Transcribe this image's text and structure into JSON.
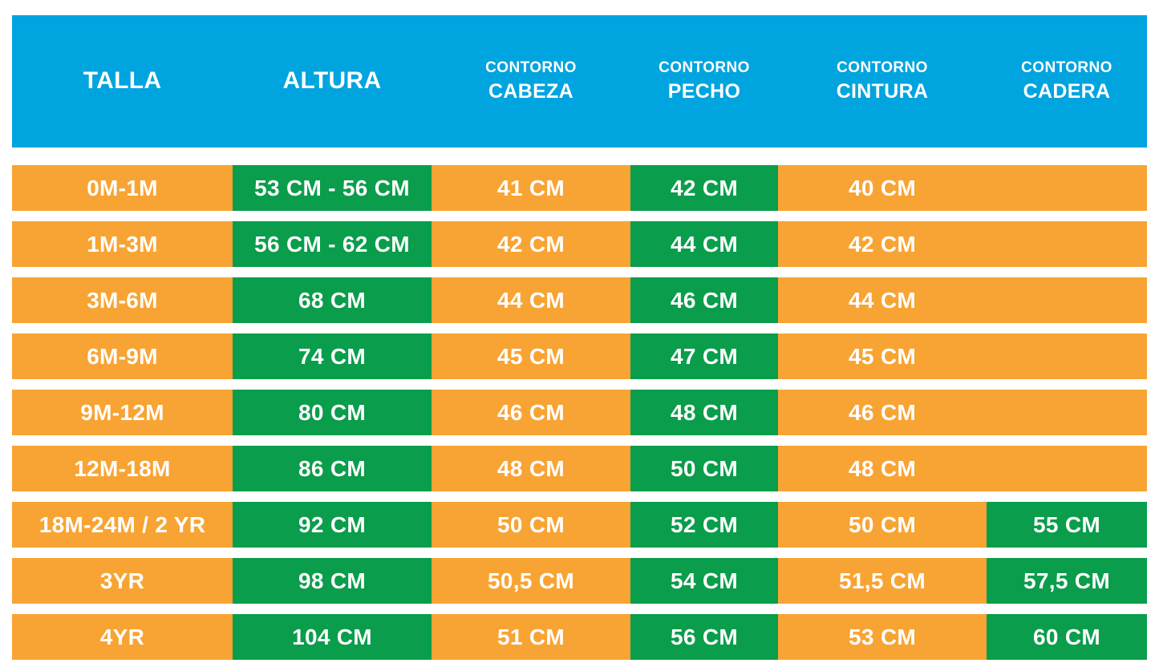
{
  "colors": {
    "header_bg": "#00A4DF",
    "row_bg": "#F8A434",
    "highlight_bg": "#0A9D4B",
    "text": "#FFFFFF"
  },
  "chart_data": {
    "type": "table",
    "columns": [
      {
        "id": "talla",
        "sublabel": "",
        "label": "TALLA"
      },
      {
        "id": "altura",
        "sublabel": "",
        "label": "ALTURA"
      },
      {
        "id": "cabeza",
        "sublabel": "CONTORNO",
        "label": "CABEZA"
      },
      {
        "id": "pecho",
        "sublabel": "CONTORNO",
        "label": "PECHO"
      },
      {
        "id": "cintura",
        "sublabel": "CONTORNO",
        "label": "CINTURA"
      },
      {
        "id": "cadera",
        "sublabel": "CONTORNO",
        "label": "CADERA"
      }
    ],
    "rows": [
      {
        "cells": [
          {
            "text": "0M-1M",
            "green": false
          },
          {
            "text": "53 CM - 56 CM",
            "green": true
          },
          {
            "text": "41 CM",
            "green": false
          },
          {
            "text": "42 CM",
            "green": true
          },
          {
            "text": "40 CM",
            "green": false
          },
          {
            "text": "",
            "green": false
          }
        ]
      },
      {
        "cells": [
          {
            "text": "1M-3M",
            "green": false
          },
          {
            "text": "56 CM - 62 CM",
            "green": true
          },
          {
            "text": "42 CM",
            "green": false
          },
          {
            "text": "44 CM",
            "green": true
          },
          {
            "text": "42 CM",
            "green": false
          },
          {
            "text": "",
            "green": false
          }
        ]
      },
      {
        "cells": [
          {
            "text": "3M-6M",
            "green": false
          },
          {
            "text": "68 CM",
            "green": true
          },
          {
            "text": "44 CM",
            "green": false
          },
          {
            "text": "46 CM",
            "green": true
          },
          {
            "text": "44 CM",
            "green": false
          },
          {
            "text": "",
            "green": false
          }
        ]
      },
      {
        "cells": [
          {
            "text": "6M-9M",
            "green": false
          },
          {
            "text": "74 CM",
            "green": true
          },
          {
            "text": "45 CM",
            "green": false
          },
          {
            "text": "47 CM",
            "green": true
          },
          {
            "text": "45 CM",
            "green": false
          },
          {
            "text": "",
            "green": false
          }
        ]
      },
      {
        "cells": [
          {
            "text": "9M-12M",
            "green": false
          },
          {
            "text": "80 CM",
            "green": true
          },
          {
            "text": "46 CM",
            "green": false
          },
          {
            "text": "48 CM",
            "green": true
          },
          {
            "text": "46 CM",
            "green": false
          },
          {
            "text": "",
            "green": false
          }
        ]
      },
      {
        "cells": [
          {
            "text": "12M-18M",
            "green": false
          },
          {
            "text": "86 CM",
            "green": true
          },
          {
            "text": "48 CM",
            "green": false
          },
          {
            "text": "50 CM",
            "green": true
          },
          {
            "text": "48 CM",
            "green": false
          },
          {
            "text": "",
            "green": false
          }
        ]
      },
      {
        "cells": [
          {
            "text": "18M-24M / 2 YR",
            "green": false
          },
          {
            "text": "92 CM",
            "green": true
          },
          {
            "text": "50 CM",
            "green": false
          },
          {
            "text": "52 CM",
            "green": true
          },
          {
            "text": "50 CM",
            "green": false
          },
          {
            "text": "55 CM",
            "green": true
          }
        ]
      },
      {
        "cells": [
          {
            "text": "3YR",
            "green": false
          },
          {
            "text": "98 CM",
            "green": true
          },
          {
            "text": "50,5 CM",
            "green": false
          },
          {
            "text": "54 CM",
            "green": true
          },
          {
            "text": "51,5 CM",
            "green": false
          },
          {
            "text": "57,5 CM",
            "green": true
          }
        ]
      },
      {
        "cells": [
          {
            "text": "4YR",
            "green": false
          },
          {
            "text": "104 CM",
            "green": true
          },
          {
            "text": "51 CM",
            "green": false
          },
          {
            "text": "56 CM",
            "green": true
          },
          {
            "text": "53 CM",
            "green": false
          },
          {
            "text": "60 CM",
            "green": true
          }
        ]
      }
    ]
  }
}
